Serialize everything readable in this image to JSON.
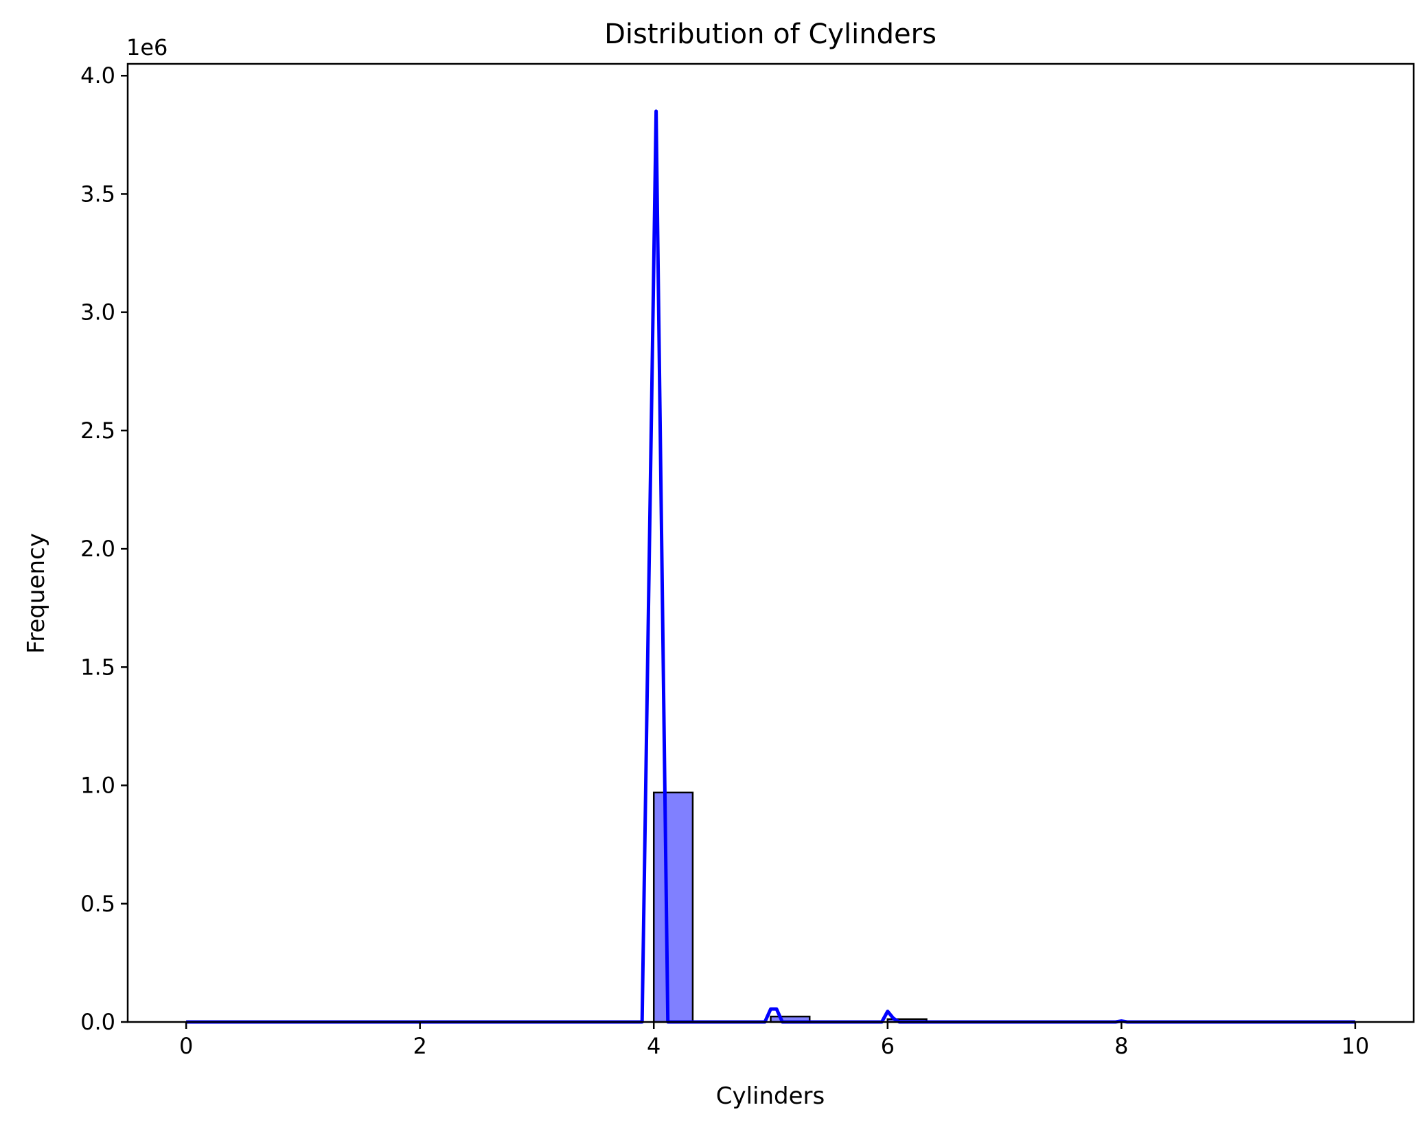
{
  "chart_data": {
    "type": "bar",
    "title": "Distribution of Cylinders",
    "xlabel": "Cylinders",
    "ylabel": "Frequency",
    "y_offset_label": "1e6",
    "xlim": [
      -0.5,
      10.5
    ],
    "ylim": [
      0,
      4.05
    ],
    "x_ticks": [
      0,
      2,
      4,
      6,
      8,
      10
    ],
    "x_tick_labels": [
      "0",
      "2",
      "4",
      "6",
      "8",
      "10"
    ],
    "y_ticks": [
      0,
      0.5,
      1.0,
      1.5,
      2.0,
      2.5,
      3.0,
      3.5,
      4.0
    ],
    "y_tick_labels": [
      "0.0",
      "0.5",
      "1.0",
      "1.5",
      "2.0",
      "2.5",
      "3.0",
      "3.5",
      "4.0"
    ],
    "grid": false,
    "bars": [
      {
        "x0": 4.0,
        "x1": 4.333,
        "value": 0.97
      },
      {
        "x0": 5.0,
        "x1": 5.333,
        "value": 0.023
      },
      {
        "x0": 6.0,
        "x1": 6.333,
        "value": 0.012
      }
    ],
    "bar_color": "#8080ff",
    "bar_edge_color": "#000000",
    "kde_color": "#0000ff",
    "kde_line": {
      "x": [
        0,
        3.0,
        3.9,
        4.02,
        4.12,
        4.95,
        5.0,
        5.05,
        5.1,
        5.95,
        6.0,
        6.05,
        6.1,
        7.95,
        8.0,
        8.05,
        10
      ],
      "y": [
        0,
        0,
        0,
        3.85,
        0,
        0,
        0.055,
        0.055,
        0,
        0,
        0.045,
        0.015,
        0,
        0,
        0.004,
        0,
        0
      ]
    }
  }
}
